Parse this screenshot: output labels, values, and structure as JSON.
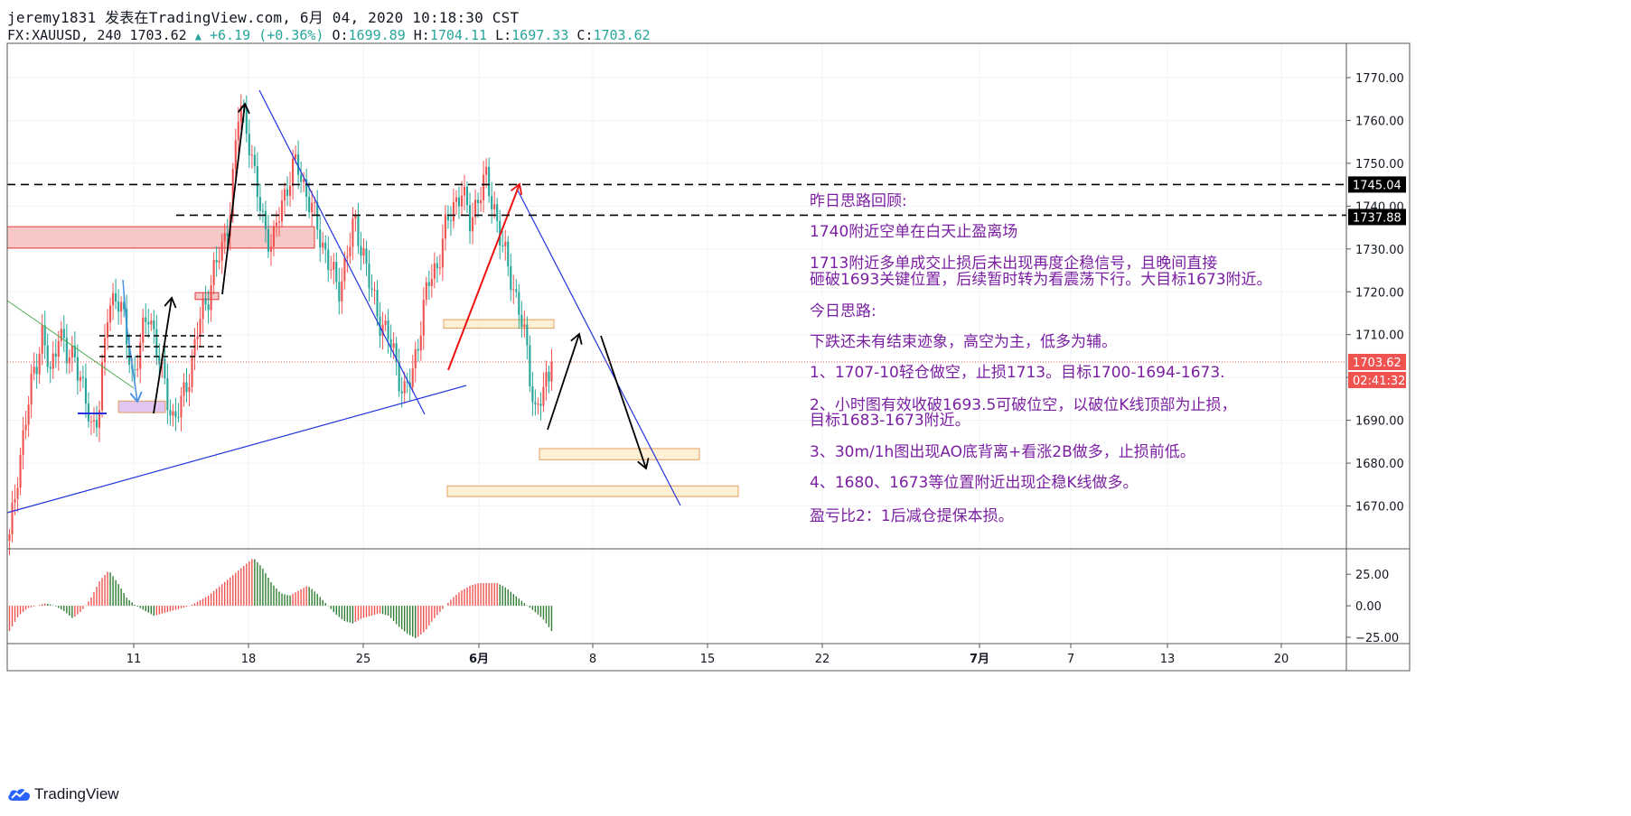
{
  "header": {
    "author_line": "jeremy1831 发表在TradingView.com, 6月 04, 2020 10:18:30 CST",
    "symbol": "FX:XAUUSD, 240",
    "last": "1703.62",
    "change": "+6.19 (+0.36%)",
    "open_label": "O:",
    "open": "1699.89",
    "high_label": "H:",
    "high": "1704.11",
    "low_label": "L:",
    "low": "1697.33",
    "close_label": "C:",
    "close": "1703.62"
  },
  "brand": {
    "name": "TradingView"
  },
  "colors": {
    "up": "#ef5350",
    "down": "#26a69a",
    "ao_up": "#ef5350",
    "ao_down": "#2e7d32",
    "trend_blue": "#2233dd",
    "note_text": "#7b1fa2",
    "ma_green": "#4caf50"
  },
  "chart_data": [
    {
      "type": "candlestick",
      "title": "",
      "ylim": [
        1660,
        1778
      ],
      "y_ticks": [
        "1770.00",
        "1760.00",
        "1750.00",
        "1740.00",
        "1730.00",
        "1720.00",
        "1710.00",
        "1700.00",
        "1690.00",
        "1680.00",
        "1670.00"
      ],
      "x_ticks": [
        "11",
        "18",
        "25",
        "6月",
        "8",
        "15",
        "22",
        "7月",
        "7",
        "13",
        "20"
      ],
      "price_labels": [
        {
          "value": 1745.04,
          "text": "1745.04"
        },
        {
          "value": 1737.88,
          "text": "1737.88"
        },
        {
          "value": 1703.62,
          "text": "1703.62"
        },
        {
          "value": 1703.62,
          "text": "02:41:32"
        }
      ],
      "levels": [
        1745.04,
        1737.88,
        1703.62
      ],
      "grid": true,
      "anchor_prices": [
        1662,
        1678,
        1690,
        1702,
        1710,
        1700,
        1712,
        1704,
        1706,
        1696,
        1688,
        1694,
        1716,
        1720,
        1712,
        1700,
        1708,
        1716,
        1706,
        1697,
        1690,
        1694,
        1702,
        1712,
        1718,
        1726,
        1730,
        1742,
        1764,
        1758,
        1744,
        1736,
        1730,
        1740,
        1746,
        1750,
        1744,
        1738,
        1732,
        1726,
        1720,
        1728,
        1736,
        1730,
        1720,
        1714,
        1710,
        1704,
        1696,
        1700,
        1712,
        1722,
        1726,
        1734,
        1740,
        1744,
        1736,
        1742,
        1746,
        1740,
        1730,
        1724,
        1716,
        1706,
        1692,
        1696,
        1703.62
      ],
      "notes": [
        "昨日思路回顾:",
        "1740附近空单在白天止盈离场",
        "1713附近多单成交止损后未出现再度企稳信号，且晚间直接",
        "砸破1693关键位置，后续暂时转为看震荡下行。大目标1673附近。",
        "今日思路:",
        "下跌还未有结束迹象，高空为主，低多为辅。",
        "1、1707-10轻仓做空，止损1713。目标1700-1694-1673.",
        "2、小时图有效收破1693.5可破位空，以破位K线顶部为止损，",
        "目标1683-1673附近。",
        "3、30m/1h图出现AO底背离+看涨2B做多，止损前低。",
        "4、1680、1673等位置附近出现企稳K线做多。",
        "盈亏比2：1后减仓提保本损。"
      ]
    },
    {
      "type": "bar",
      "title": "",
      "ylim": [
        -30,
        38
      ],
      "y_ticks": [
        "25.00",
        "0.00",
        "−25.00"
      ],
      "anchor_values": [
        -20,
        -8,
        -2,
        0,
        2,
        0,
        -4,
        -10,
        -4,
        6,
        20,
        28,
        18,
        6,
        0,
        -4,
        -8,
        -6,
        -4,
        -2,
        0,
        4,
        8,
        14,
        20,
        26,
        32,
        38,
        30,
        18,
        10,
        8,
        12,
        16,
        10,
        2,
        -6,
        -12,
        -14,
        -10,
        -8,
        -6,
        -8,
        -16,
        -22,
        -26,
        -20,
        -10,
        -2,
        6,
        12,
        16,
        18,
        18,
        18,
        14,
        8,
        2,
        -4,
        -10,
        -20
      ]
    }
  ]
}
